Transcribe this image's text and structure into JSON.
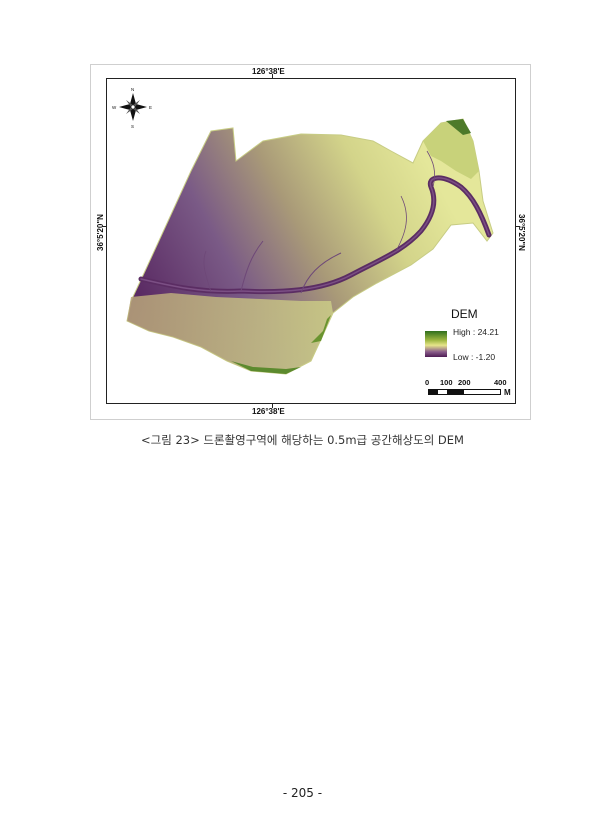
{
  "figure": {
    "coord_top": "126°38'E",
    "coord_bottom": "126°38'E",
    "coord_left": "36°5'20\"N",
    "coord_right": "36°5'20\"N",
    "compass": {
      "n": "N",
      "s": "S",
      "e": "E",
      "w": "W"
    },
    "legend": {
      "title": "DEM",
      "high_label": "High : 24.21",
      "low_label": "Low : -1.20",
      "colors": {
        "high": "#2f6e1d",
        "mid": "#e6e58a",
        "low": "#4e1c54"
      }
    },
    "scale": {
      "labels": [
        "0",
        "100",
        "200",
        "400"
      ],
      "unit": "M"
    }
  },
  "caption": "<그림 23> 드론촬영구역에 해당하는 0.5m급 공간해상도의 DEM",
  "page_number": "- 205 -"
}
